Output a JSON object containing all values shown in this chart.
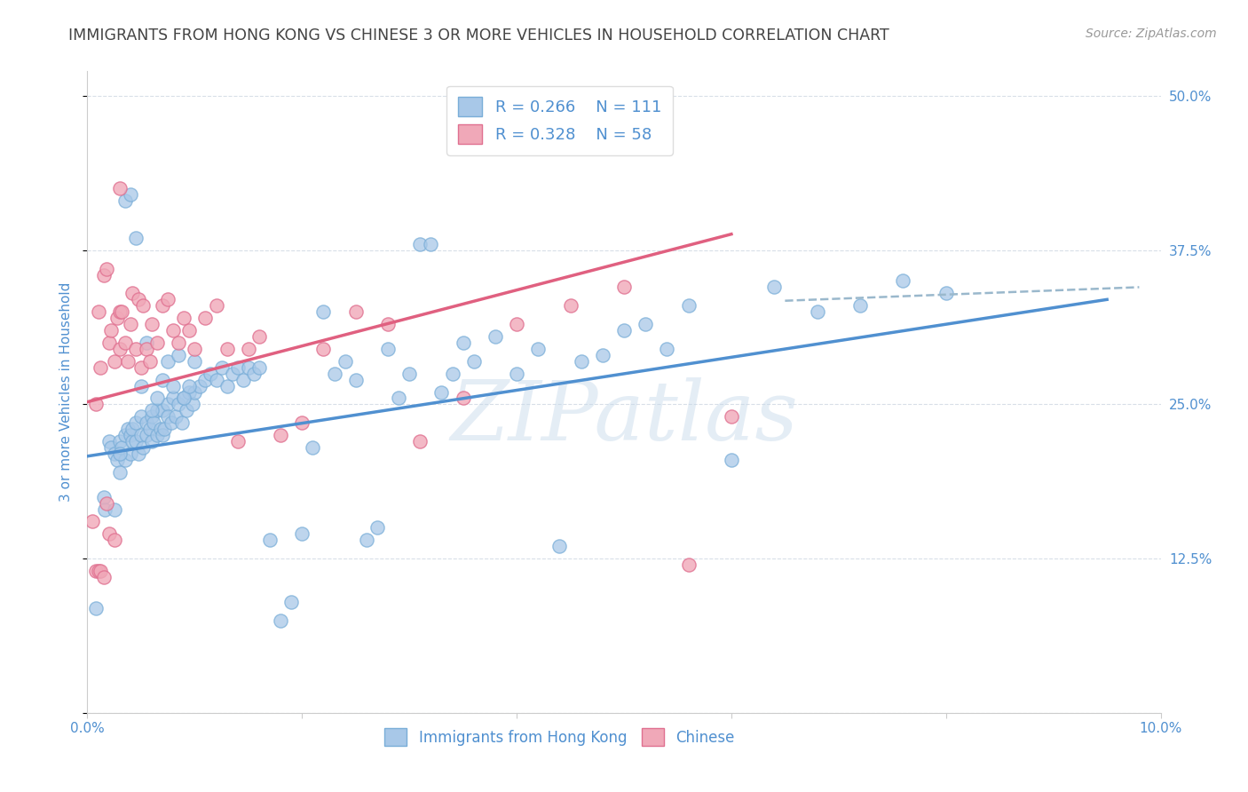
{
  "title": "IMMIGRANTS FROM HONG KONG VS CHINESE 3 OR MORE VEHICLES IN HOUSEHOLD CORRELATION CHART",
  "source": "Source: ZipAtlas.com",
  "ylabel": "3 or more Vehicles in Household",
  "xlim": [
    0.0,
    0.1
  ],
  "ylim": [
    0.0,
    0.52
  ],
  "xticks": [
    0.0,
    0.02,
    0.04,
    0.06,
    0.08,
    0.1
  ],
  "xticklabels": [
    "0.0%",
    "",
    "",
    "",
    "",
    "10.0%"
  ],
  "yticks": [
    0.0,
    0.125,
    0.25,
    0.375,
    0.5
  ],
  "yticklabels": [
    "",
    "12.5%",
    "25.0%",
    "37.5%",
    "50.0%"
  ],
  "blue_color": "#a8c8e8",
  "pink_color": "#f0a8b8",
  "blue_edge_color": "#7aaed8",
  "pink_edge_color": "#e07090",
  "blue_line_color": "#5090d0",
  "pink_line_color": "#e06080",
  "dashed_line_color": "#9ab8cc",
  "title_color": "#444444",
  "axis_label_color": "#5090d0",
  "tick_label_color": "#5090d0",
  "legend_text_color": "#5090d0",
  "watermark": "ZIPatlas",
  "R_blue": 0.266,
  "N_blue": 111,
  "R_pink": 0.328,
  "N_pink": 58,
  "blue_scatter_x": [
    0.0008,
    0.0015,
    0.002,
    0.0022,
    0.0025,
    0.0028,
    0.003,
    0.003,
    0.0032,
    0.0035,
    0.0035,
    0.0038,
    0.004,
    0.004,
    0.0042,
    0.0042,
    0.0045,
    0.0045,
    0.0048,
    0.005,
    0.005,
    0.0052,
    0.0055,
    0.0055,
    0.0058,
    0.006,
    0.006,
    0.0062,
    0.0065,
    0.0065,
    0.0068,
    0.007,
    0.007,
    0.0072,
    0.0075,
    0.0075,
    0.0078,
    0.008,
    0.0082,
    0.0085,
    0.0088,
    0.009,
    0.0092,
    0.0095,
    0.0098,
    0.01,
    0.0105,
    0.011,
    0.0115,
    0.012,
    0.0125,
    0.013,
    0.0135,
    0.014,
    0.0145,
    0.015,
    0.0155,
    0.016,
    0.017,
    0.018,
    0.019,
    0.02,
    0.021,
    0.022,
    0.023,
    0.024,
    0.025,
    0.026,
    0.027,
    0.028,
    0.029,
    0.03,
    0.031,
    0.032,
    0.033,
    0.034,
    0.035,
    0.036,
    0.038,
    0.04,
    0.042,
    0.044,
    0.046,
    0.048,
    0.05,
    0.052,
    0.054,
    0.056,
    0.06,
    0.064,
    0.068,
    0.072,
    0.076,
    0.08,
    0.0016,
    0.0025,
    0.003,
    0.0035,
    0.004,
    0.0045,
    0.005,
    0.0055,
    0.006,
    0.0065,
    0.007,
    0.0075,
    0.008,
    0.0085,
    0.009,
    0.0095,
    0.01
  ],
  "blue_scatter_y": [
    0.085,
    0.175,
    0.22,
    0.215,
    0.21,
    0.205,
    0.22,
    0.195,
    0.215,
    0.225,
    0.205,
    0.23,
    0.225,
    0.21,
    0.22,
    0.23,
    0.235,
    0.22,
    0.21,
    0.24,
    0.225,
    0.215,
    0.225,
    0.235,
    0.23,
    0.24,
    0.22,
    0.235,
    0.245,
    0.225,
    0.23,
    0.245,
    0.225,
    0.23,
    0.25,
    0.24,
    0.235,
    0.255,
    0.24,
    0.25,
    0.235,
    0.255,
    0.245,
    0.26,
    0.25,
    0.26,
    0.265,
    0.27,
    0.275,
    0.27,
    0.28,
    0.265,
    0.275,
    0.28,
    0.27,
    0.28,
    0.275,
    0.28,
    0.14,
    0.075,
    0.09,
    0.145,
    0.215,
    0.325,
    0.275,
    0.285,
    0.27,
    0.14,
    0.15,
    0.295,
    0.255,
    0.275,
    0.38,
    0.38,
    0.26,
    0.275,
    0.3,
    0.285,
    0.305,
    0.275,
    0.295,
    0.135,
    0.285,
    0.29,
    0.31,
    0.315,
    0.295,
    0.33,
    0.205,
    0.345,
    0.325,
    0.33,
    0.35,
    0.34,
    0.165,
    0.165,
    0.21,
    0.415,
    0.42,
    0.385,
    0.265,
    0.3,
    0.245,
    0.255,
    0.27,
    0.285,
    0.265,
    0.29,
    0.255,
    0.265,
    0.285
  ],
  "pink_scatter_x": [
    0.0005,
    0.0008,
    0.001,
    0.0012,
    0.0015,
    0.0018,
    0.002,
    0.0022,
    0.0025,
    0.0028,
    0.003,
    0.003,
    0.0032,
    0.0035,
    0.0038,
    0.004,
    0.0042,
    0.0045,
    0.0048,
    0.005,
    0.0052,
    0.0055,
    0.0058,
    0.006,
    0.0065,
    0.007,
    0.0075,
    0.008,
    0.0085,
    0.009,
    0.0095,
    0.01,
    0.011,
    0.012,
    0.013,
    0.014,
    0.015,
    0.016,
    0.018,
    0.02,
    0.022,
    0.025,
    0.028,
    0.031,
    0.035,
    0.04,
    0.045,
    0.05,
    0.056,
    0.06,
    0.0008,
    0.001,
    0.0012,
    0.0015,
    0.0018,
    0.002,
    0.0025,
    0.003
  ],
  "pink_scatter_y": [
    0.155,
    0.25,
    0.325,
    0.28,
    0.355,
    0.36,
    0.3,
    0.31,
    0.285,
    0.32,
    0.325,
    0.295,
    0.325,
    0.3,
    0.285,
    0.315,
    0.34,
    0.295,
    0.335,
    0.28,
    0.33,
    0.295,
    0.285,
    0.315,
    0.3,
    0.33,
    0.335,
    0.31,
    0.3,
    0.32,
    0.31,
    0.295,
    0.32,
    0.33,
    0.295,
    0.22,
    0.295,
    0.305,
    0.225,
    0.235,
    0.295,
    0.325,
    0.315,
    0.22,
    0.255,
    0.315,
    0.33,
    0.345,
    0.12,
    0.24,
    0.115,
    0.115,
    0.115,
    0.11,
    0.17,
    0.145,
    0.14,
    0.425
  ],
  "blue_line_x": [
    0.0,
    0.095
  ],
  "blue_line_y": [
    0.208,
    0.335
  ],
  "pink_line_x": [
    0.0,
    0.06
  ],
  "pink_line_y": [
    0.252,
    0.388
  ],
  "dashed_line_x": [
    0.065,
    0.098
  ],
  "dashed_line_y": [
    0.334,
    0.345
  ],
  "background_color": "#ffffff",
  "grid_color": "#d8dfe8"
}
